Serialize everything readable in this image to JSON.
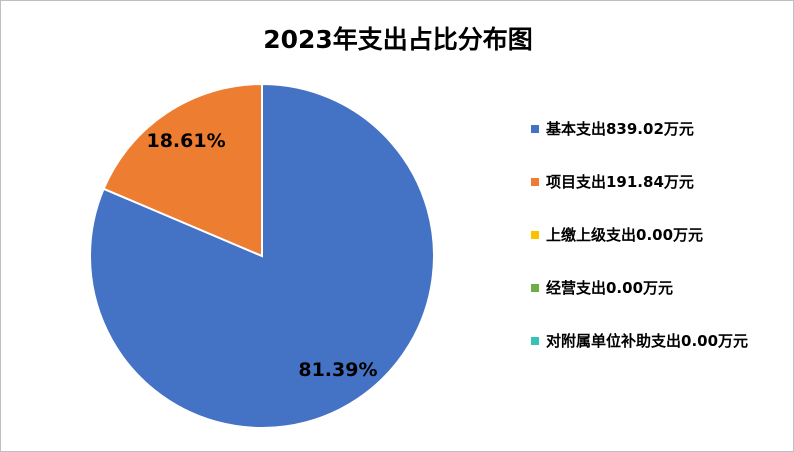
{
  "chart_data": {
    "type": "pie",
    "title": "2023年支出占比分布图",
    "categories": [
      "基本支出839.02万元",
      "项目支出191.84万元",
      "上缴上级支出0.00万元",
      "经营支出0.00万元",
      "对附属单位补助支出0.00万元"
    ],
    "values": [
      81.39,
      18.61,
      0,
      0,
      0
    ],
    "value_labels": [
      "81.39%",
      "18.61%",
      null,
      null,
      null
    ],
    "colors": [
      "#4472c4",
      "#ed7d31",
      "#ffc000",
      "#70ad47",
      "#36c2b4"
    ],
    "legend": "right"
  }
}
